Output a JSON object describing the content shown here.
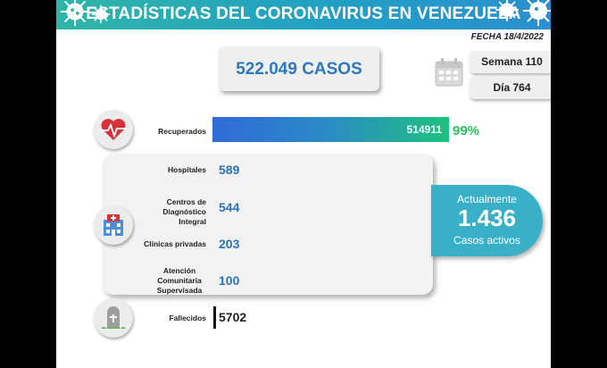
{
  "header": {
    "title": "ESTADÍSTICAS DEL CORONAVIRUS EN VENEZUELA"
  },
  "fecha": "FECHA 18/4/2022",
  "total_casos": "522.049 CASOS",
  "semana": "Semana 110",
  "dia": "Día 764",
  "recuperados": {
    "label": "Recuperados",
    "value": "514911",
    "percent": "99%",
    "fraction": 0.99
  },
  "atencion": [
    {
      "label": "Hospitales",
      "value": "589"
    },
    {
      "label": "Centros de Diagnóstico Integral",
      "value": "544"
    },
    {
      "label": "Clínicas privadas",
      "value": "203"
    },
    {
      "label": "Atención Comunitaria Supervisada",
      "value": "100"
    }
  ],
  "activos": {
    "prefix": "Actualmente",
    "value": "1.436",
    "suffix": "Casos activos"
  },
  "fallecidos": {
    "label": "Fallecidos",
    "value": "5702"
  },
  "colors": {
    "banner": "#21a0c4",
    "accent_blue": "#2a73b8",
    "green": "#2bbf5b",
    "active_bg": "#3ab0c8"
  },
  "icons": [
    "virus-icon",
    "calendar-icon",
    "heart-icon",
    "hospital-icon",
    "tombstone-icon"
  ]
}
